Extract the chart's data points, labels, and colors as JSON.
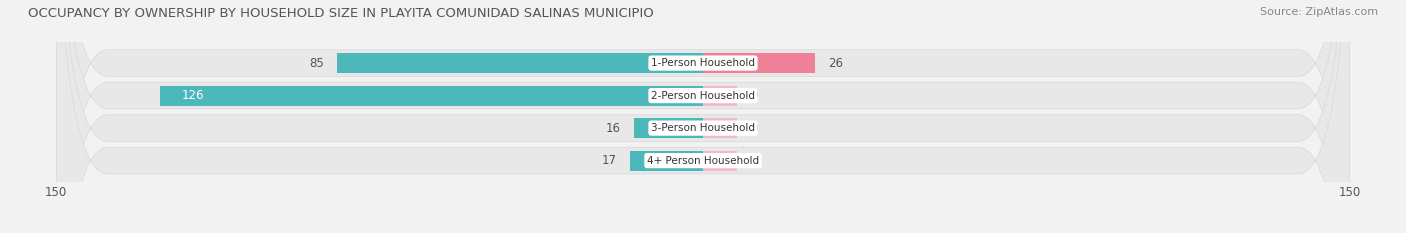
{
  "title": "OCCUPANCY BY OWNERSHIP BY HOUSEHOLD SIZE IN PLAYITA COMUNIDAD SALINAS MUNICIPIO",
  "source": "Source: ZipAtlas.com",
  "categories": [
    "1-Person Household",
    "2-Person Household",
    "3-Person Household",
    "4+ Person Household"
  ],
  "owner_values": [
    85,
    126,
    16,
    17
  ],
  "renter_values": [
    26,
    0,
    0,
    0
  ],
  "owner_color": "#4db8bc",
  "renter_color": "#f08098",
  "renter_color_light": "#f5b8c8",
  "axis_limit": 150,
  "bg_color": "#f2f2f2",
  "row_bg_color": "#e8e8e8",
  "row_bg_light": "#f8f8f8",
  "title_fontsize": 9.5,
  "source_fontsize": 8,
  "bar_label_fontsize": 8.5,
  "category_fontsize": 7.5,
  "axis_fontsize": 8.5,
  "legend_fontsize": 8.5
}
